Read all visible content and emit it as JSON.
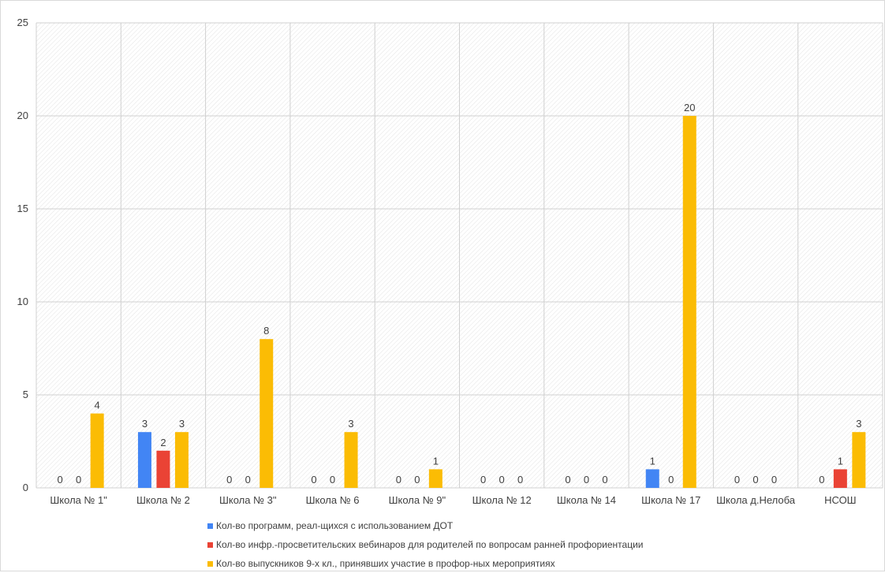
{
  "chart_data": {
    "type": "bar",
    "categories": [
      "Школа № 1\"",
      "Школа № 2",
      "Школа № 3\"",
      "Школа  № 6",
      "Школа № 9\"",
      "Школа  № 12",
      "Школа № 14",
      "Школа № 17",
      "Школа д.Нелоба",
      "НСОШ"
    ],
    "series": [
      {
        "name": "Кол-во программ, реал-щихся  с использованием ДОТ",
        "color": "#4285f4",
        "values": [
          0,
          3,
          0,
          0,
          0,
          0,
          0,
          1,
          0,
          0
        ]
      },
      {
        "name": "Кол-во инфр.-просветительских вебинаров для родителей по вопросам ранней профориентации",
        "color": "#ea4335",
        "values": [
          0,
          2,
          0,
          0,
          0,
          0,
          0,
          0,
          0,
          1
        ]
      },
      {
        "name": "Кол-во выпускников 9-х кл., принявших  участие в профор-ных мероприятиях",
        "color": "#fbbc04",
        "values": [
          4,
          3,
          8,
          3,
          1,
          0,
          0,
          20,
          0,
          3
        ]
      }
    ],
    "ylim": [
      0,
      25
    ],
    "yticks": [
      0,
      5,
      10,
      15,
      20,
      25
    ],
    "grid": true,
    "legend_position": "bottom",
    "title": "",
    "xlabel": "",
    "ylabel": ""
  }
}
